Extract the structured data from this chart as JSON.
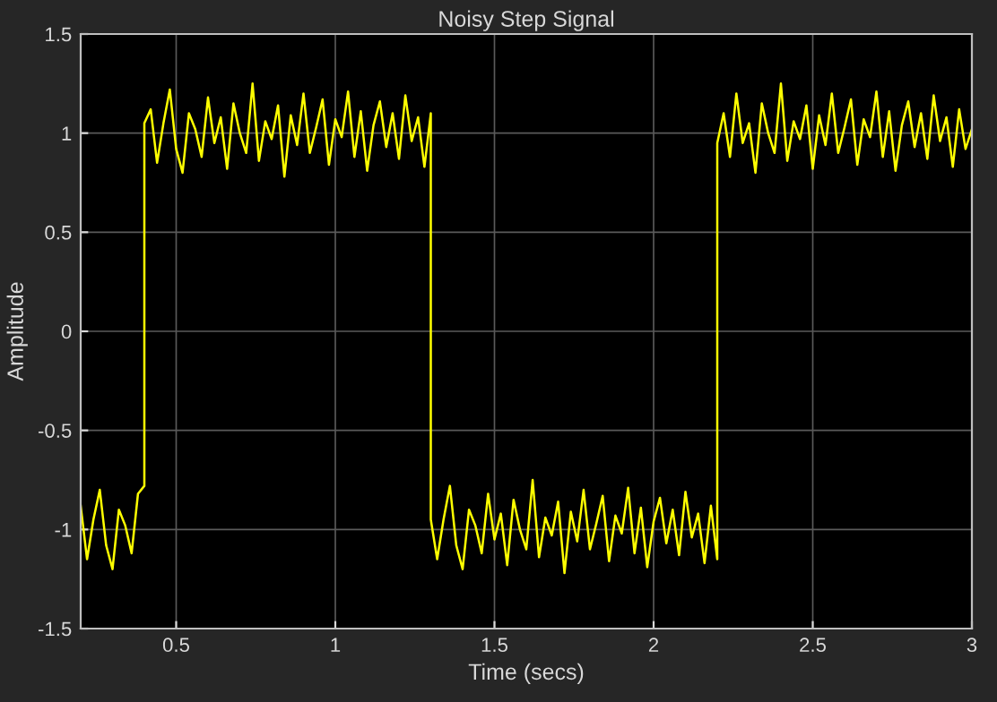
{
  "chart_data": {
    "type": "line",
    "title": "Noisy Step Signal",
    "xlabel": "Time (secs)",
    "ylabel": "Amplitude",
    "x": [
      0.2,
      0.22,
      0.24,
      0.26,
      0.28,
      0.3,
      0.32,
      0.34,
      0.36,
      0.38,
      0.4,
      0.4,
      0.42,
      0.44,
      0.46,
      0.48,
      0.5,
      0.52,
      0.54,
      0.56,
      0.58,
      0.6,
      0.62,
      0.64,
      0.66,
      0.68,
      0.7,
      0.72,
      0.74,
      0.76,
      0.78,
      0.8,
      0.82,
      0.84,
      0.86,
      0.88,
      0.9,
      0.92,
      0.94,
      0.96,
      0.98,
      1.0,
      1.02,
      1.04,
      1.06,
      1.08,
      1.1,
      1.12,
      1.14,
      1.16,
      1.18,
      1.2,
      1.22,
      1.24,
      1.26,
      1.28,
      1.3,
      1.3,
      1.32,
      1.34,
      1.36,
      1.38,
      1.4,
      1.42,
      1.44,
      1.46,
      1.48,
      1.5,
      1.52,
      1.54,
      1.56,
      1.58,
      1.6,
      1.62,
      1.64,
      1.66,
      1.68,
      1.7,
      1.72,
      1.74,
      1.76,
      1.78,
      1.8,
      1.82,
      1.84,
      1.86,
      1.88,
      1.9,
      1.92,
      1.94,
      1.96,
      1.98,
      2.0,
      2.02,
      2.04,
      2.06,
      2.08,
      2.1,
      2.12,
      2.14,
      2.16,
      2.18,
      2.2,
      2.2,
      2.22,
      2.24,
      2.26,
      2.28,
      2.3,
      2.32,
      2.34,
      2.36,
      2.38,
      2.4,
      2.42,
      2.44,
      2.46,
      2.48,
      2.5,
      2.52,
      2.54,
      2.56,
      2.58,
      2.6,
      2.62,
      2.64,
      2.66,
      2.68,
      2.7,
      2.72,
      2.74,
      2.76,
      2.78,
      2.8,
      2.82,
      2.84,
      2.86,
      2.88,
      2.9,
      2.92,
      2.94,
      2.96,
      2.98,
      3.0
    ],
    "series": [
      {
        "color": "#ffff00",
        "values": [
          -0.88,
          -1.15,
          -0.95,
          -0.8,
          -1.08,
          -1.2,
          -0.9,
          -0.98,
          -1.12,
          -0.82,
          -0.78,
          1.05,
          1.12,
          0.85,
          1.05,
          1.22,
          0.92,
          0.8,
          1.1,
          1.02,
          0.88,
          1.18,
          0.95,
          1.08,
          0.82,
          1.15,
          1.0,
          0.9,
          1.25,
          0.86,
          1.06,
          0.97,
          1.14,
          0.78,
          1.09,
          0.94,
          1.2,
          0.9,
          1.03,
          1.17,
          0.84,
          1.07,
          0.98,
          1.21,
          0.88,
          1.11,
          0.81,
          1.04,
          1.16,
          0.93,
          1.1,
          0.87,
          1.19,
          0.96,
          1.08,
          0.83,
          1.1,
          -0.95,
          -1.15,
          -0.95,
          -0.78,
          -1.08,
          -1.2,
          -0.9,
          -0.98,
          -1.12,
          -0.82,
          -1.05,
          -0.92,
          -1.18,
          -0.85,
          -1.0,
          -1.1,
          -0.75,
          -1.14,
          -0.94,
          -1.03,
          -0.86,
          -1.22,
          -0.91,
          -1.06,
          -0.8,
          -1.1,
          -0.97,
          -0.83,
          -1.16,
          -0.93,
          -1.02,
          -0.79,
          -1.12,
          -0.89,
          -1.19,
          -0.96,
          -0.84,
          -1.07,
          -0.9,
          -1.13,
          -0.81,
          -1.04,
          -0.92,
          -1.17,
          -0.88,
          -1.15,
          0.95,
          1.1,
          0.88,
          1.2,
          0.95,
          1.05,
          0.8,
          1.15,
          1.0,
          0.9,
          1.25,
          0.86,
          1.06,
          0.97,
          1.14,
          0.82,
          1.09,
          0.94,
          1.2,
          0.9,
          1.03,
          1.17,
          0.84,
          1.07,
          0.98,
          1.21,
          0.88,
          1.11,
          0.81,
          1.04,
          1.16,
          0.93,
          1.1,
          0.87,
          1.19,
          0.96,
          1.08,
          0.83,
          1.12,
          0.92,
          1.02
        ]
      }
    ],
    "xlim": [
      0.2,
      3
    ],
    "xticks": [
      0.5,
      1,
      1.5,
      2,
      2.5,
      3
    ],
    "ylim": [
      -1.5,
      1.5
    ],
    "yticks": [
      -1.5,
      -1,
      -0.5,
      0,
      0.5,
      1,
      1.5
    ],
    "grid": true,
    "marker": "none",
    "line_style": "solid"
  }
}
